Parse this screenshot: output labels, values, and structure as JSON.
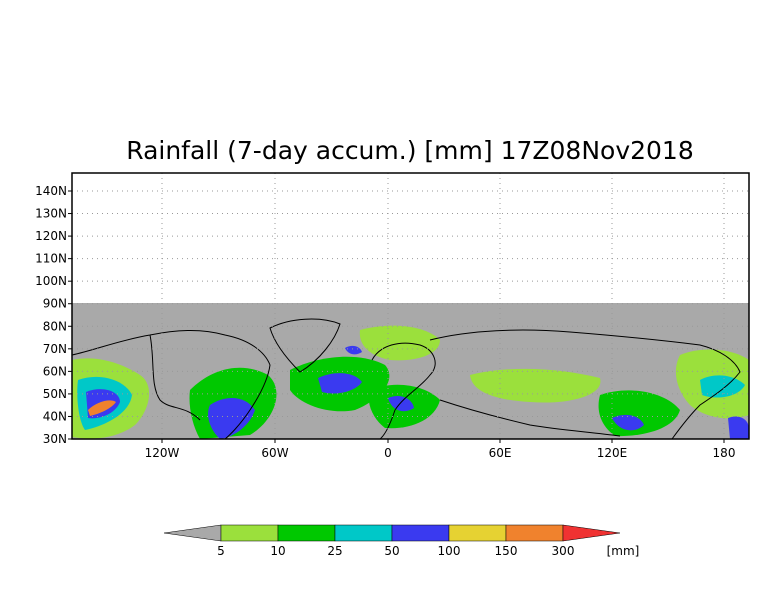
{
  "title": "Rainfall (7-day accum.) [mm] 17Z08Nov2018",
  "lat_labels": [
    "140N",
    "130N",
    "120N",
    "110N",
    "100N",
    "90N",
    "80N",
    "70N",
    "60N",
    "50N",
    "40N",
    "30N"
  ],
  "lon_labels": [
    "120W",
    "60W",
    "0",
    "60E",
    "120E",
    "180"
  ],
  "colorbar": {
    "unit": "[mm]",
    "thresholds": [
      "5",
      "10",
      "25",
      "50",
      "100",
      "150",
      "300"
    ],
    "colors": [
      "#a9a9a9",
      "#9be03c",
      "#00c800",
      "#00c8c8",
      "#3a3af0",
      "#e6d232",
      "#f0822d",
      "#f03232"
    ]
  },
  "colors": {
    "missing": "#a9a9a9",
    "background": "#ffffff"
  }
}
